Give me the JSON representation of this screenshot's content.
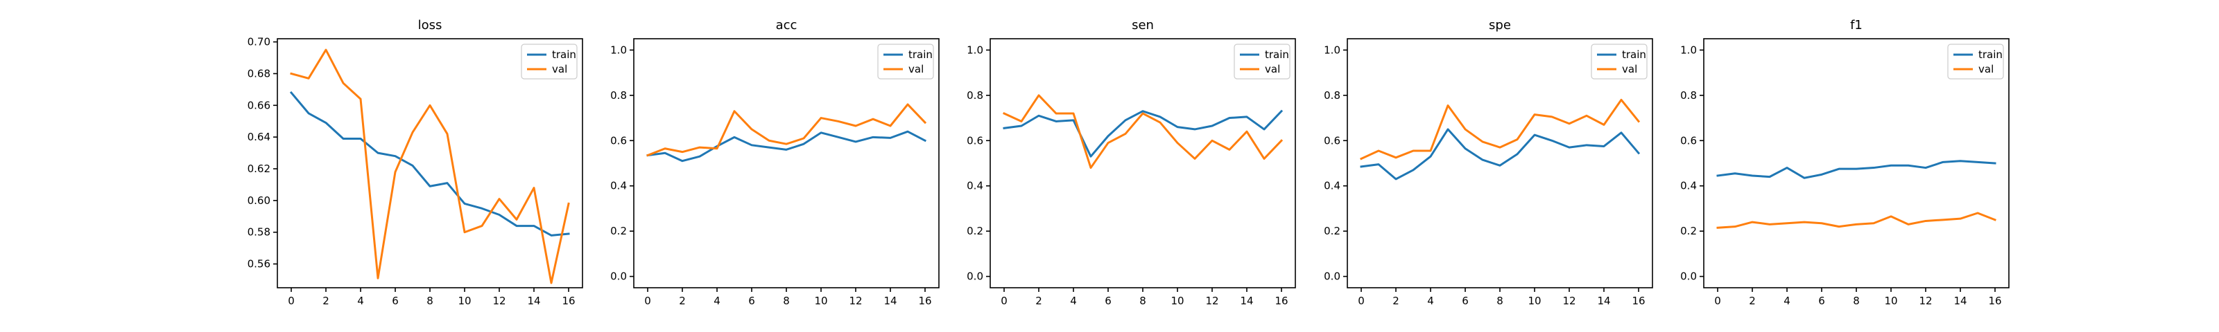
{
  "chart_data": [
    {
      "type": "line",
      "title": "loss",
      "x": [
        0,
        1,
        2,
        3,
        4,
        5,
        6,
        7,
        8,
        9,
        10,
        11,
        12,
        13,
        14,
        15,
        16
      ],
      "xticks": [
        0,
        2,
        4,
        6,
        8,
        10,
        12,
        14,
        16
      ],
      "xlim": [
        -0.8,
        16.8
      ],
      "ylim": [
        0.545,
        0.702
      ],
      "yticks": [
        0.56,
        0.58,
        0.6,
        0.62,
        0.64,
        0.66,
        0.68,
        0.7
      ],
      "ytick_labels": [
        "0.56",
        "0.58",
        "0.60",
        "0.62",
        "0.64",
        "0.66",
        "0.68",
        "0.70"
      ],
      "legend_position": "top-right",
      "series": [
        {
          "name": "train",
          "color": "#1f77b4",
          "values": [
            0.668,
            0.655,
            0.649,
            0.639,
            0.639,
            0.63,
            0.628,
            0.622,
            0.609,
            0.611,
            0.598,
            0.595,
            0.591,
            0.584,
            0.584,
            0.578,
            0.579
          ]
        },
        {
          "name": "val",
          "color": "#ff7f0e",
          "values": [
            0.68,
            0.677,
            0.695,
            0.674,
            0.664,
            0.551,
            0.618,
            0.643,
            0.66,
            0.642,
            0.58,
            0.584,
            0.601,
            0.588,
            0.608,
            0.548,
            0.598
          ]
        }
      ]
    },
    {
      "type": "line",
      "title": "acc",
      "x": [
        0,
        1,
        2,
        3,
        4,
        5,
        6,
        7,
        8,
        9,
        10,
        11,
        12,
        13,
        14,
        15,
        16
      ],
      "xticks": [
        0,
        2,
        4,
        6,
        8,
        10,
        12,
        14,
        16
      ],
      "xlim": [
        -0.8,
        16.8
      ],
      "ylim": [
        -0.05,
        1.05
      ],
      "yticks": [
        0.0,
        0.2,
        0.4,
        0.6,
        0.8,
        1.0
      ],
      "ytick_labels": [
        "0.0",
        "0.2",
        "0.4",
        "0.6",
        "0.8",
        "1.0"
      ],
      "legend_position": "top-right",
      "series": [
        {
          "name": "train",
          "color": "#1f77b4",
          "values": [
            0.535,
            0.545,
            0.51,
            0.53,
            0.575,
            0.615,
            0.58,
            0.57,
            0.56,
            0.585,
            0.635,
            0.615,
            0.595,
            0.615,
            0.612,
            0.64,
            0.6
          ]
        },
        {
          "name": "val",
          "color": "#ff7f0e",
          "values": [
            0.535,
            0.565,
            0.55,
            0.57,
            0.565,
            0.73,
            0.65,
            0.6,
            0.585,
            0.61,
            0.7,
            0.685,
            0.665,
            0.695,
            0.665,
            0.76,
            0.68
          ]
        }
      ]
    },
    {
      "type": "line",
      "title": "sen",
      "x": [
        0,
        1,
        2,
        3,
        4,
        5,
        6,
        7,
        8,
        9,
        10,
        11,
        12,
        13,
        14,
        15,
        16
      ],
      "xticks": [
        0,
        2,
        4,
        6,
        8,
        10,
        12,
        14,
        16
      ],
      "xlim": [
        -0.8,
        16.8
      ],
      "ylim": [
        -0.05,
        1.05
      ],
      "yticks": [
        0.0,
        0.2,
        0.4,
        0.6,
        0.8,
        1.0
      ],
      "ytick_labels": [
        "0.0",
        "0.2",
        "0.4",
        "0.6",
        "0.8",
        "1.0"
      ],
      "legend_position": "top-right",
      "series": [
        {
          "name": "train",
          "color": "#1f77b4",
          "values": [
            0.655,
            0.665,
            0.71,
            0.685,
            0.69,
            0.53,
            0.62,
            0.69,
            0.73,
            0.705,
            0.66,
            0.65,
            0.665,
            0.7,
            0.705,
            0.65,
            0.73
          ]
        },
        {
          "name": "val",
          "color": "#ff7f0e",
          "values": [
            0.72,
            0.685,
            0.8,
            0.72,
            0.72,
            0.48,
            0.59,
            0.63,
            0.72,
            0.68,
            0.59,
            0.52,
            0.6,
            0.56,
            0.64,
            0.52,
            0.6
          ]
        }
      ]
    },
    {
      "type": "line",
      "title": "spe",
      "x": [
        0,
        1,
        2,
        3,
        4,
        5,
        6,
        7,
        8,
        9,
        10,
        11,
        12,
        13,
        14,
        15,
        16
      ],
      "xticks": [
        0,
        2,
        4,
        6,
        8,
        10,
        12,
        14,
        16
      ],
      "xlim": [
        -0.8,
        16.8
      ],
      "ylim": [
        -0.05,
        1.05
      ],
      "yticks": [
        0.0,
        0.2,
        0.4,
        0.6,
        0.8,
        1.0
      ],
      "ytick_labels": [
        "0.0",
        "0.2",
        "0.4",
        "0.6",
        "0.8",
        "1.0"
      ],
      "legend_position": "top-right",
      "series": [
        {
          "name": "train",
          "color": "#1f77b4",
          "values": [
            0.485,
            0.495,
            0.43,
            0.47,
            0.53,
            0.65,
            0.565,
            0.515,
            0.49,
            0.54,
            0.625,
            0.6,
            0.57,
            0.58,
            0.575,
            0.635,
            0.545
          ]
        },
        {
          "name": "val",
          "color": "#ff7f0e",
          "values": [
            0.52,
            0.555,
            0.525,
            0.555,
            0.555,
            0.755,
            0.65,
            0.595,
            0.57,
            0.605,
            0.715,
            0.705,
            0.675,
            0.71,
            0.67,
            0.78,
            0.685
          ]
        }
      ]
    },
    {
      "type": "line",
      "title": "f1",
      "x": [
        0,
        1,
        2,
        3,
        4,
        5,
        6,
        7,
        8,
        9,
        10,
        11,
        12,
        13,
        14,
        15,
        16
      ],
      "xticks": [
        0,
        2,
        4,
        6,
        8,
        10,
        12,
        14,
        16
      ],
      "xlim": [
        -0.8,
        16.8
      ],
      "ylim": [
        -0.05,
        1.05
      ],
      "yticks": [
        0.0,
        0.2,
        0.4,
        0.6,
        0.8,
        1.0
      ],
      "ytick_labels": [
        "0.0",
        "0.2",
        "0.4",
        "0.6",
        "0.8",
        "1.0"
      ],
      "legend_position": "top-right",
      "series": [
        {
          "name": "train",
          "color": "#1f77b4",
          "values": [
            0.445,
            0.455,
            0.445,
            0.44,
            0.48,
            0.435,
            0.45,
            0.475,
            0.475,
            0.48,
            0.49,
            0.49,
            0.48,
            0.505,
            0.51,
            0.505,
            0.5
          ]
        },
        {
          "name": "val",
          "color": "#ff7f0e",
          "values": [
            0.215,
            0.22,
            0.24,
            0.23,
            0.235,
            0.24,
            0.235,
            0.22,
            0.23,
            0.235,
            0.265,
            0.23,
            0.245,
            0.25,
            0.255,
            0.28,
            0.25
          ]
        }
      ]
    }
  ]
}
